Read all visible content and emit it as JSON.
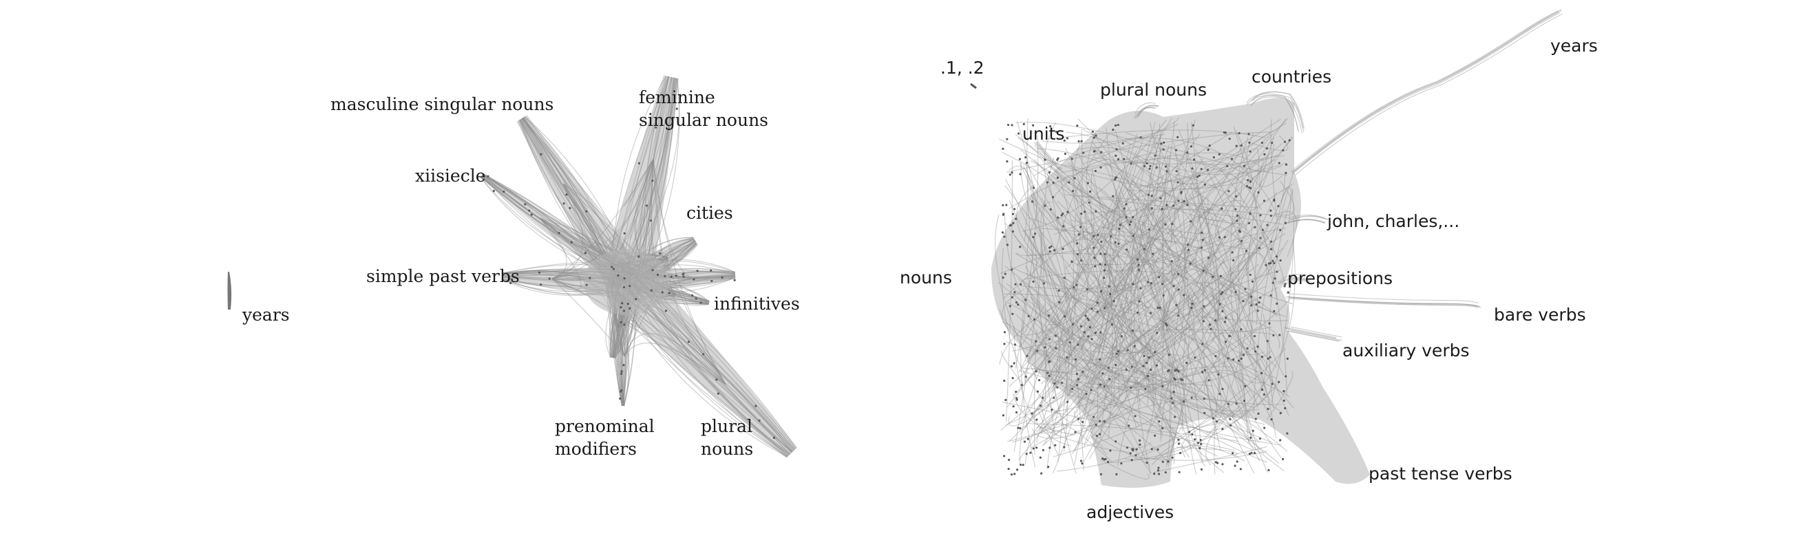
{
  "left_panel": {
    "labels": [
      {
        "key": "masculine_singular_nouns",
        "lines": [
          "masculine singular nouns"
        ]
      },
      {
        "key": "feminine_singular_nouns",
        "lines": [
          "feminine",
          "singular nouns"
        ]
      },
      {
        "key": "xiisiecle",
        "lines": [
          "xiisiecle"
        ]
      },
      {
        "key": "cities",
        "lines": [
          "cities"
        ]
      },
      {
        "key": "simple_past_verbs",
        "lines": [
          "simple past verbs"
        ]
      },
      {
        "key": "infinitives",
        "lines": [
          "infinitives"
        ]
      },
      {
        "key": "years",
        "lines": [
          "years"
        ]
      },
      {
        "key": "prenominal_modifiers",
        "lines": [
          "prenominal",
          "modifiers"
        ]
      },
      {
        "key": "plural_nouns",
        "lines": [
          "plural",
          "nouns"
        ]
      }
    ]
  },
  "right_panel": {
    "labels": [
      {
        "key": "dot_1_dot_2",
        "lines": [
          ".1, .2"
        ]
      },
      {
        "key": "plural_nouns",
        "lines": [
          "plural nouns"
        ]
      },
      {
        "key": "countries",
        "lines": [
          "countries"
        ]
      },
      {
        "key": "years",
        "lines": [
          "years"
        ]
      },
      {
        "key": "units",
        "lines": [
          "units"
        ]
      },
      {
        "key": "john_charles",
        "lines": [
          "john, charles,..."
        ]
      },
      {
        "key": "nouns",
        "lines": [
          "nouns"
        ]
      },
      {
        "key": "prepositions",
        "lines": [
          "prepositions"
        ]
      },
      {
        "key": "bare_verbs",
        "lines": [
          "bare verbs"
        ]
      },
      {
        "key": "auxiliary_verbs",
        "lines": [
          "auxiliary verbs"
        ]
      },
      {
        "key": "past_tense_verbs",
        "lines": [
          "past tense verbs"
        ]
      },
      {
        "key": "adjectives",
        "lines": [
          "adjectives"
        ]
      }
    ]
  }
}
